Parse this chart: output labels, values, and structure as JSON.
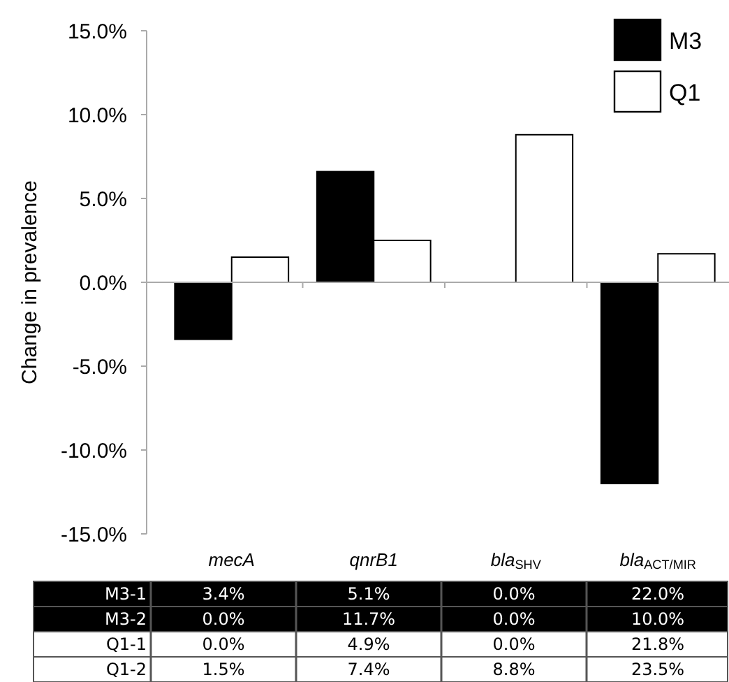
{
  "chart_data": {
    "type": "bar",
    "ylabel": "Change in prevalence",
    "categories": [
      "mecA",
      "qnrB1",
      "bla$_{SHV}$",
      "bla$_{ACT/MIR}$"
    ],
    "series": [
      {
        "name": "M3",
        "color": "#000000",
        "values": [
          -3.4,
          6.6,
          0,
          -12.0
        ]
      },
      {
        "name": "Q1",
        "color": "#ffffff",
        "values": [
          1.5,
          2.5,
          8.8,
          1.7
        ]
      }
    ],
    "ylim": [
      -15,
      15
    ],
    "yticks": [
      {
        "value": -15,
        "label": "-15.0%"
      },
      {
        "value": -10,
        "label": "-10.0%"
      },
      {
        "value": -5,
        "label": "-5.0%"
      },
      {
        "value": 0,
        "label": "0.0%"
      },
      {
        "value": 5,
        "label": "5.0%"
      },
      {
        "value": 10,
        "label": "10.0%"
      },
      {
        "value": 15,
        "label": "15.0%"
      }
    ],
    "legend": "top right",
    "annotations": [
      "M3-1",
      "3.4%",
      "5.1%",
      "0.0%",
      "22.0%",
      "M3-2",
      "0.0%",
      "11.7%",
      "0.0%",
      "10.0%",
      "Q1-1",
      "0.0%",
      "4.9%",
      "0.0%",
      "21.8%",
      "Q1-2",
      "1.5%",
      "7.4%",
      "8.8%",
      "23.5%"
    ]
  }
}
